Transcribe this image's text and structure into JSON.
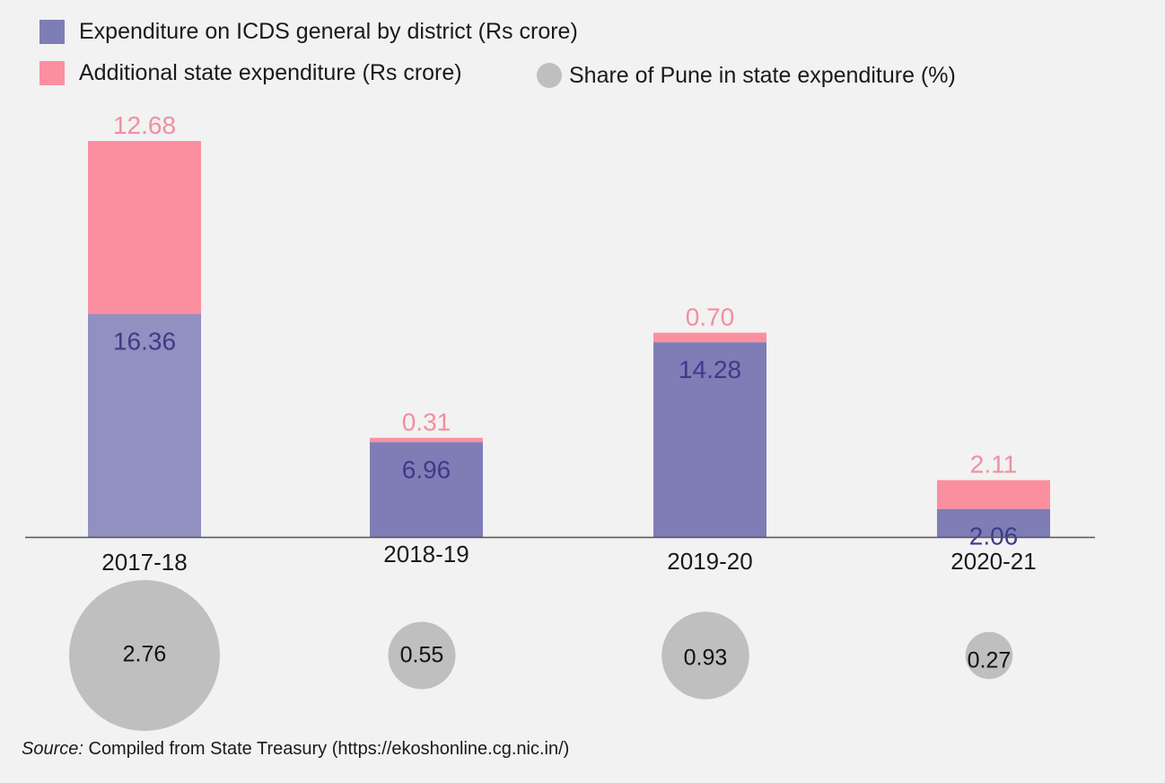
{
  "colors": {
    "background": "#f2f2f2",
    "base_bar": "#7f7db6",
    "base_bar_first": "#9290c0",
    "additional_bar": "#fb8fa0",
    "share_bubble": "#bfbfbf",
    "base_label": "#3e3a8a",
    "additional_label": "#f08fa0",
    "axis": "#555555"
  },
  "legend": {
    "base": "Expenditure on ICDS general by district (Rs crore)",
    "additional": "Additional state expenditure (Rs crore)",
    "share": "Share of Pune in state expenditure (%)"
  },
  "chart_data": {
    "type": "bar",
    "stacked": true,
    "categories": [
      "2017-18",
      "2018-19",
      "2019-20",
      "2020-21"
    ],
    "series": [
      {
        "name": "Expenditure on ICDS general by district (Rs crore)",
        "values": [
          16.36,
          6.96,
          14.28,
          2.06
        ]
      },
      {
        "name": "Additional state expenditure (Rs crore)",
        "values": [
          12.68,
          0.31,
          0.7,
          2.11
        ]
      }
    ],
    "bubbles": {
      "name": "Share of Pune in state expenditure (%)",
      "values": [
        2.76,
        0.55,
        0.93,
        0.27
      ]
    },
    "ylim": [
      0,
      30
    ],
    "grid": false,
    "legend_position": "top-left"
  },
  "source": {
    "label": "Source:",
    "text": " Compiled from State Treasury (https://ekoshonline.cg.nic.in/)"
  }
}
